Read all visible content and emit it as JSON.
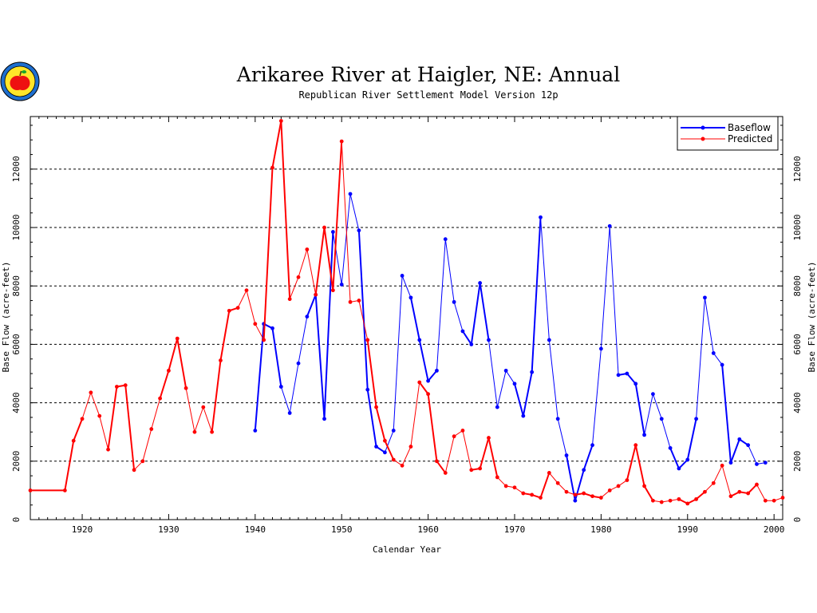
{
  "chart_data": {
    "type": "line",
    "title": "Arikaree River at Haigler, NE: Annual",
    "subtitle": "Republican River Settlement Model Version 12p",
    "xlabel": "Calendar Year",
    "ylabel": "Base Flow (acre-feet)",
    "xlim": [
      1914,
      2001
    ],
    "ylim": [
      0,
      13800
    ],
    "x_ticks": [
      "1920",
      "1930",
      "1940",
      "1950",
      "1960",
      "1970",
      "1980",
      "1990",
      "2000"
    ],
    "y_ticks": [
      "0",
      "2000",
      "4000",
      "6000",
      "8000",
      "10000",
      "12000"
    ],
    "grid": "horizontal dashed",
    "legend_position": "top-right",
    "logo_icon": "apple-logo-icon",
    "series": [
      {
        "name": "Baseflow",
        "color": "#0000ff",
        "points": [
          [
            1940,
            3050
          ],
          [
            1941,
            6700
          ],
          [
            1942,
            6550
          ],
          [
            1943,
            4550
          ],
          [
            1944,
            3650
          ],
          [
            1945,
            5350
          ],
          [
            1946,
            6950
          ],
          [
            1947,
            7700
          ],
          [
            1948,
            3450
          ],
          [
            1949,
            9850
          ],
          [
            1950,
            8050
          ],
          [
            1951,
            11150
          ],
          [
            1952,
            9900
          ],
          [
            1953,
            4450
          ],
          [
            1954,
            2500
          ],
          [
            1955,
            2300
          ],
          [
            1956,
            3050
          ],
          [
            1957,
            8350
          ],
          [
            1958,
            7600
          ],
          [
            1959,
            6150
          ],
          [
            1960,
            4750
          ],
          [
            1961,
            5100
          ],
          [
            1962,
            9600
          ],
          [
            1963,
            7450
          ],
          [
            1964,
            6450
          ],
          [
            1965,
            6000
          ],
          [
            1966,
            8100
          ],
          [
            1967,
            6150
          ],
          [
            1968,
            3850
          ],
          [
            1969,
            5100
          ],
          [
            1970,
            4650
          ],
          [
            1971,
            3550
          ],
          [
            1972,
            5050
          ],
          [
            1973,
            10350
          ],
          [
            1974,
            6150
          ],
          [
            1975,
            3450
          ],
          [
            1976,
            2200
          ],
          [
            1977,
            650
          ],
          [
            1978,
            1700
          ],
          [
            1979,
            2550
          ],
          [
            1980,
            5850
          ],
          [
            1981,
            10050
          ],
          [
            1982,
            4950
          ],
          [
            1983,
            5000
          ],
          [
            1984,
            4650
          ],
          [
            1985,
            2900
          ],
          [
            1986,
            4300
          ],
          [
            1987,
            3450
          ],
          [
            1988,
            2450
          ],
          [
            1989,
            1750
          ],
          [
            1990,
            2050
          ],
          [
            1991,
            3450
          ],
          [
            1992,
            7600
          ],
          [
            1993,
            5700
          ],
          [
            1994,
            5300
          ],
          [
            1995,
            1950
          ],
          [
            1996,
            2750
          ],
          [
            1997,
            2550
          ],
          [
            1998,
            1900
          ],
          [
            1999,
            1950
          ]
        ]
      },
      {
        "name": "Predicted",
        "color": "#ff0000",
        "points": [
          [
            1914,
            1000
          ],
          [
            1918,
            1000
          ],
          [
            1919,
            2700
          ],
          [
            1920,
            3450
          ],
          [
            1921,
            4350
          ],
          [
            1922,
            3550
          ],
          [
            1923,
            2400
          ],
          [
            1924,
            4550
          ],
          [
            1925,
            4600
          ],
          [
            1926,
            1700
          ],
          [
            1927,
            2000
          ],
          [
            1928,
            3100
          ],
          [
            1929,
            4150
          ],
          [
            1930,
            5100
          ],
          [
            1931,
            6200
          ],
          [
            1932,
            4500
          ],
          [
            1933,
            3000
          ],
          [
            1934,
            3850
          ],
          [
            1935,
            3000
          ],
          [
            1936,
            5450
          ],
          [
            1937,
            7150
          ],
          [
            1938,
            7250
          ],
          [
            1939,
            7850
          ],
          [
            1940,
            6700
          ],
          [
            1941,
            6150
          ],
          [
            1942,
            12050
          ],
          [
            1943,
            13650
          ],
          [
            1944,
            7550
          ],
          [
            1945,
            8300
          ],
          [
            1946,
            9250
          ],
          [
            1947,
            7700
          ],
          [
            1948,
            10000
          ],
          [
            1949,
            7850
          ],
          [
            1950,
            12950
          ],
          [
            1951,
            7450
          ],
          [
            1952,
            7500
          ],
          [
            1953,
            6150
          ],
          [
            1954,
            3850
          ],
          [
            1955,
            2700
          ],
          [
            1956,
            2050
          ],
          [
            1957,
            1850
          ],
          [
            1958,
            2500
          ],
          [
            1959,
            4700
          ],
          [
            1960,
            4300
          ],
          [
            1961,
            2000
          ],
          [
            1962,
            1600
          ],
          [
            1963,
            2850
          ],
          [
            1964,
            3050
          ],
          [
            1965,
            1700
          ],
          [
            1966,
            1750
          ],
          [
            1967,
            2800
          ],
          [
            1968,
            1450
          ],
          [
            1969,
            1150
          ],
          [
            1970,
            1100
          ],
          [
            1971,
            900
          ],
          [
            1972,
            850
          ],
          [
            1973,
            750
          ],
          [
            1974,
            1600
          ],
          [
            1975,
            1250
          ],
          [
            1976,
            950
          ],
          [
            1977,
            850
          ],
          [
            1978,
            900
          ],
          [
            1979,
            800
          ],
          [
            1980,
            750
          ],
          [
            1981,
            1000
          ],
          [
            1982,
            1150
          ],
          [
            1983,
            1350
          ],
          [
            1984,
            2550
          ],
          [
            1985,
            1150
          ],
          [
            1986,
            650
          ],
          [
            1987,
            600
          ],
          [
            1988,
            650
          ],
          [
            1989,
            700
          ],
          [
            1990,
            550
          ],
          [
            1991,
            700
          ],
          [
            1992,
            950
          ],
          [
            1993,
            1250
          ],
          [
            1994,
            1850
          ],
          [
            1995,
            800
          ],
          [
            1996,
            950
          ],
          [
            1997,
            900
          ],
          [
            1998,
            1200
          ],
          [
            1999,
            650
          ],
          [
            2000,
            650
          ],
          [
            2001,
            750
          ]
        ]
      }
    ]
  }
}
